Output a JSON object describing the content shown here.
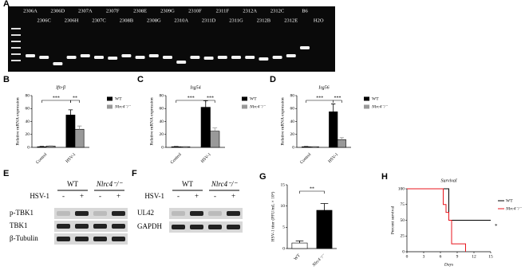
{
  "panel_labels": [
    "A",
    "B",
    "C",
    "D",
    "E",
    "F",
    "G",
    "H"
  ],
  "gel": {
    "lanes_top": [
      "2306A",
      "2306D",
      "2307A",
      "2307F",
      "2308E",
      "2309G",
      "2310F",
      "2311F",
      "2312A",
      "2312C",
      "B6"
    ],
    "lanes_bottom": [
      "2306C",
      "2306H",
      "2307C",
      "2308B",
      "2308G",
      "2310A",
      "2311D",
      "2311G",
      "2312B",
      "2312E",
      "H2O"
    ]
  },
  "blots": [
    {
      "groups": [
        "WT",
        "Nlrc4⁻/⁻"
      ],
      "treatment": "HSV-1",
      "signs": [
        "-",
        "+",
        "-",
        "+"
      ],
      "rows": [
        "p-TBK1",
        "TBK1",
        "β-Tubulin"
      ]
    },
    {
      "groups": [
        "WT",
        "Nlrc4⁻/⁻"
      ],
      "treatment": "HSV-1",
      "signs": [
        "-",
        "+",
        "-",
        "+"
      ],
      "rows": [
        "UL42",
        "GAPDH"
      ]
    }
  ],
  "chart_data": [
    {
      "type": "bar",
      "title": "Ifn-β",
      "y_label": "Relative mRNA expression",
      "categories": [
        "Control",
        "HSV-1"
      ],
      "series": [
        {
          "name": "WT",
          "color": "#000000",
          "values": [
            1,
            50
          ],
          "errors": [
            0.5,
            8
          ]
        },
        {
          "name": "Nlrc4⁻/⁻",
          "color": "#999999",
          "values": [
            2,
            28
          ],
          "errors": [
            0.5,
            5
          ]
        }
      ],
      "ylim": [
        0,
        80
      ],
      "yticks": [
        0,
        20,
        40,
        60,
        80
      ],
      "annotations": [
        "***",
        "**"
      ]
    },
    {
      "type": "bar",
      "title": "Isg54",
      "y_label": "Relative mRNA expression",
      "categories": [
        "Control",
        "HSV-1"
      ],
      "series": [
        {
          "name": "WT",
          "color": "#000000",
          "values": [
            1,
            62
          ],
          "errors": [
            0.3,
            10
          ]
        },
        {
          "name": "Nlrc4⁻/⁻",
          "color": "#999999",
          "values": [
            1,
            25
          ],
          "errors": [
            0.3,
            5
          ]
        }
      ],
      "ylim": [
        0,
        80
      ],
      "yticks": [
        0,
        20,
        40,
        60,
        80
      ],
      "annotations": [
        "***",
        "***"
      ]
    },
    {
      "type": "bar",
      "title": "Isg56",
      "y_label": "Relative mRNA expression",
      "categories": [
        "Control",
        "HSV-1"
      ],
      "series": [
        {
          "name": "WT",
          "color": "#000000",
          "values": [
            1,
            55
          ],
          "errors": [
            0.3,
            12
          ]
        },
        {
          "name": "Nlrc4⁻/⁻",
          "color": "#999999",
          "values": [
            1,
            12
          ],
          "errors": [
            0.3,
            3
          ]
        }
      ],
      "ylim": [
        0,
        80
      ],
      "yticks": [
        0,
        20,
        40,
        60,
        80
      ],
      "annotations": [
        "***",
        "***"
      ]
    },
    {
      "type": "bar",
      "y_label": "HSV-1 titer (PFU/mL × 10⁴)",
      "categories": [
        "WT",
        "Nlrc4⁻/⁻"
      ],
      "series": [
        {
          "colors": [
            "#ffffff",
            "#000000"
          ],
          "values": [
            1.3,
            9
          ],
          "errors": [
            0.5,
            1.6
          ]
        }
      ],
      "ylim": [
        0,
        15
      ],
      "yticks": [
        0,
        5,
        10,
        15
      ],
      "annotations": [
        "**"
      ]
    },
    {
      "type": "line",
      "title": "Survival",
      "y_label": "Percent survival",
      "x_label": "Days",
      "step": true,
      "series": [
        {
          "name": "WT",
          "color": "#000000",
          "x": [
            0,
            7.5,
            15
          ],
          "values": [
            100,
            50,
            50
          ]
        },
        {
          "name": "Nlrc4⁻/⁻",
          "color": "#e8141c",
          "x": [
            0,
            6.5,
            7,
            7.5,
            8,
            10.5
          ],
          "values": [
            100,
            75,
            62.5,
            50,
            12.5,
            0
          ]
        }
      ],
      "xlim": [
        0,
        15
      ],
      "xticks": [
        0,
        3,
        6,
        9,
        12,
        15
      ],
      "ylim": [
        0,
        100
      ],
      "yticks": [
        0,
        25,
        50,
        75,
        100
      ],
      "annotations": [
        "*"
      ]
    }
  ]
}
